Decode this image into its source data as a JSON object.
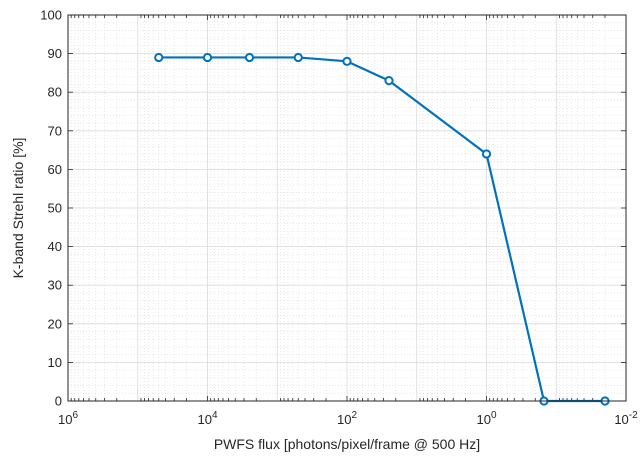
{
  "chart_data": {
    "type": "line",
    "title": "",
    "xlabel": "PWFS flux [photons/pixel/frame @ 500 Hz]",
    "ylabel": "K-band Strehl ratio [%]",
    "x_scale": "log",
    "x_reversed": true,
    "xlim": [
      1000000,
      0.01
    ],
    "ylim": [
      0,
      100
    ],
    "x_ticks": [
      {
        "base": "10",
        "exp": "6",
        "value": 1000000
      },
      {
        "base": "10",
        "exp": "4",
        "value": 10000
      },
      {
        "base": "10",
        "exp": "2",
        "value": 100
      },
      {
        "base": "10",
        "exp": "0",
        "value": 1
      },
      {
        "base": "10",
        "exp": "-2",
        "value": 0.01
      }
    ],
    "y_ticks": [
      "0",
      "10",
      "20",
      "30",
      "40",
      "50",
      "60",
      "70",
      "80",
      "90",
      "100"
    ],
    "grid": true,
    "minor_grid": true,
    "series": [
      {
        "color": "#0072bd",
        "marker": "circle",
        "x": [
          50000,
          10000,
          2500,
          500,
          100,
          25,
          1.0,
          0.15,
          0.02
        ],
        "y": [
          89,
          89,
          89,
          89,
          88,
          83,
          64,
          0,
          0
        ]
      }
    ]
  }
}
